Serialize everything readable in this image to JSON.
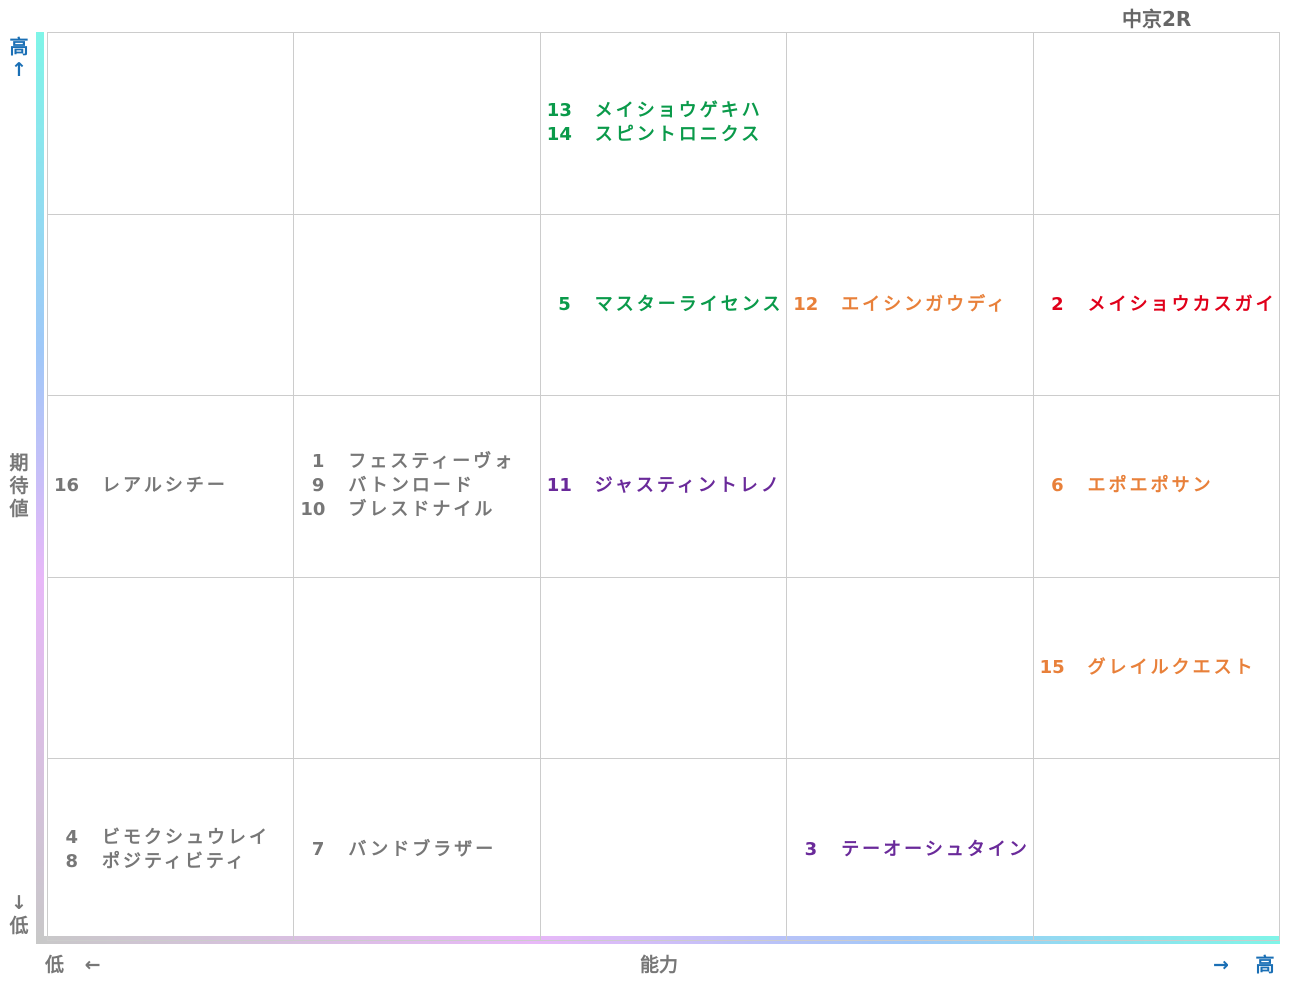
{
  "header": {
    "title": "中京2R"
  },
  "y_axis": {
    "high": "高↑",
    "label": "期待値",
    "low": "↓低"
  },
  "x_axis": {
    "low": "低 ←",
    "label": "能力",
    "high": "→ 高"
  },
  "grid": [
    [
      [],
      [],
      [
        {
          "number": 13,
          "name": "メイショウゲキハ",
          "color": "#0a9a4a"
        },
        {
          "number": 14,
          "name": "スピントロニクス",
          "color": "#0a9a4a"
        }
      ],
      [],
      []
    ],
    [
      [],
      [],
      [
        {
          "number": 5,
          "name": "マスターライセンス",
          "color": "#0a9a4a"
        }
      ],
      [
        {
          "number": 12,
          "name": "エイシンガウディ",
          "color": "#e8803a"
        }
      ],
      [
        {
          "number": 2,
          "name": "メイショウカスガイ",
          "color": "#e0001a"
        }
      ]
    ],
    [
      [
        {
          "number": 16,
          "name": "レアルシチー",
          "color": "#777777"
        }
      ],
      [
        {
          "number": 1,
          "name": "フェスティーヴォ",
          "color": "#777777"
        },
        {
          "number": 9,
          "name": "バトンロード",
          "color": "#777777"
        },
        {
          "number": 10,
          "name": "ブレスドナイル",
          "color": "#777777"
        }
      ],
      [
        {
          "number": 11,
          "name": "ジャスティントレノ",
          "color": "#6a2a9a"
        }
      ],
      [],
      [
        {
          "number": 6,
          "name": "エポエポサン",
          "color": "#e8803a"
        }
      ]
    ],
    [
      [],
      [],
      [],
      [],
      [
        {
          "number": 15,
          "name": "グレイルクエスト",
          "color": "#e8803a"
        }
      ]
    ],
    [
      [
        {
          "number": 4,
          "name": "ビモクシュウレイ",
          "color": "#777777"
        },
        {
          "number": 8,
          "name": "ポジティビティ",
          "color": "#777777"
        }
      ],
      [
        {
          "number": 7,
          "name": "バンドブラザー",
          "color": "#777777"
        }
      ],
      [],
      [
        {
          "number": 3,
          "name": "テーオーシュタイン",
          "color": "#6a2a9a"
        }
      ],
      []
    ]
  ]
}
